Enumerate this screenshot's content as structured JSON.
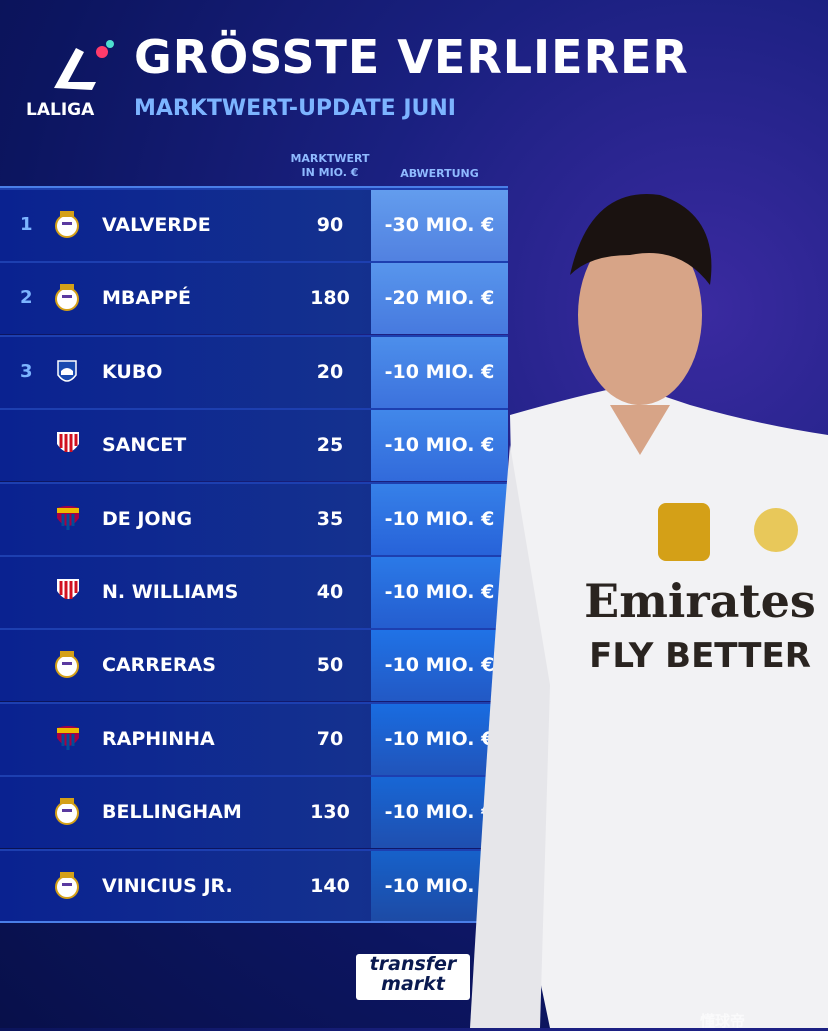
{
  "header": {
    "logo": "LALIGA",
    "title": "GRÖSSTE VERLIERER",
    "subtitle": "MARKTWERT-UPDATE JUNI"
  },
  "table": {
    "columns": [
      {
        "lines": [
          "MARKTWERT",
          "IN MIO. €"
        ]
      },
      {
        "lines": [
          "ABWERTUNG"
        ]
      }
    ],
    "rows": [
      {
        "rank": 1,
        "player": "VALVERDE",
        "value": 90,
        "change": "-30 MIO. €"
      },
      {
        "rank": 2,
        "player": "MBAPPÉ",
        "value": 180,
        "change": "-20 MIO. €"
      },
      {
        "rank": 3,
        "player": "KUBO",
        "value": 20,
        "change": "-10 MIO. €"
      },
      {
        "player": "SANCET",
        "value": 25,
        "change": "-10 MIO. €"
      },
      {
        "player": "DE JONG",
        "value": 35,
        "change": "-10 MIO. €"
      },
      {
        "player": "N. WILLIAMS",
        "value": 40,
        "change": "-10 MIO. €"
      },
      {
        "player": "CARRERAS",
        "value": 50,
        "change": "-10 MIO. €"
      },
      {
        "player": "RAPHINHA",
        "value": 70,
        "change": "-10 MIO. €"
      },
      {
        "player": "BELLINGHAM",
        "value": 130,
        "change": "-10 MIO. €"
      },
      {
        "player": "VINICIUS JR.",
        "value": 140,
        "change": "-10 MIO. €"
      }
    ]
  },
  "photo": {
    "sponsor": "Emirates",
    "slogan": "FLY BETTER"
  },
  "footer": {
    "brand": [
      "transfer",
      "markt"
    ]
  },
  "watermark": "懂球帝"
}
